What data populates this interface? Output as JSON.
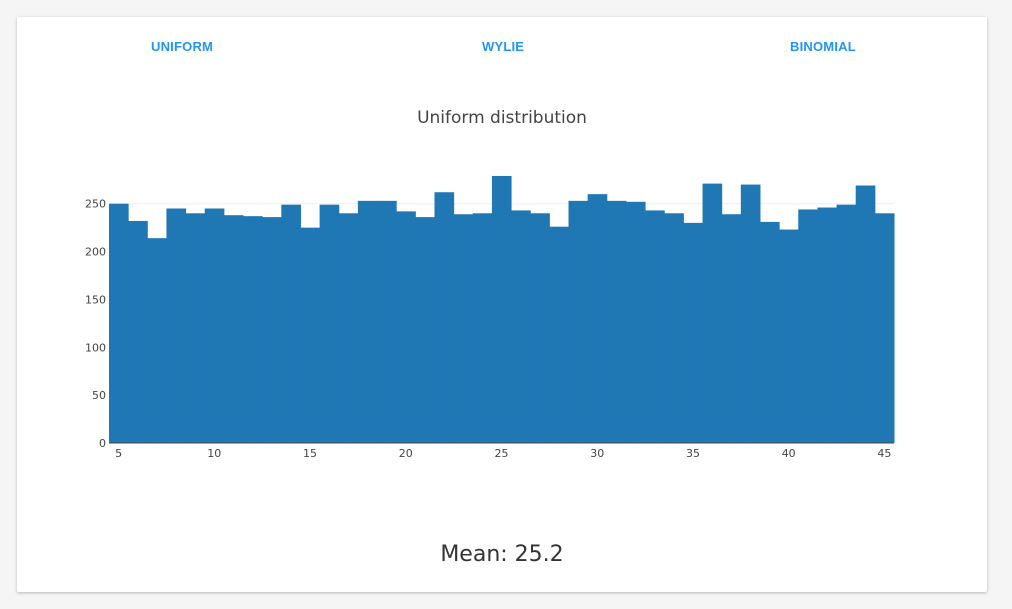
{
  "tabs": [
    {
      "label": "UNIFORM"
    },
    {
      "label": "WYLIE"
    },
    {
      "label": "BINOMIAL"
    }
  ],
  "mean_text": "Mean: 25.2",
  "colors": {
    "bar": "#1f77b4",
    "accent": "#2196f3"
  },
  "chart_data": {
    "type": "bar",
    "title": "Uniform distribution",
    "xlabel": "",
    "ylabel": "",
    "xlim": [
      4.5,
      45.5
    ],
    "ylim": [
      0,
      280
    ],
    "xticks": [
      5,
      10,
      15,
      20,
      25,
      30,
      35,
      40,
      45
    ],
    "yticks": [
      0,
      50,
      100,
      150,
      200,
      250
    ],
    "grid": true,
    "x": [
      5,
      6,
      7,
      8,
      9,
      10,
      11,
      12,
      13,
      14,
      15,
      16,
      17,
      18,
      19,
      20,
      21,
      22,
      23,
      24,
      25,
      26,
      27,
      28,
      29,
      30,
      31,
      32,
      33,
      34,
      35,
      36,
      37,
      38,
      39,
      40,
      41,
      42,
      43,
      44,
      45
    ],
    "values": [
      250,
      232,
      214,
      245,
      240,
      245,
      238,
      237,
      236,
      249,
      225,
      249,
      240,
      253,
      253,
      242,
      236,
      262,
      239,
      240,
      279,
      243,
      240,
      226,
      253,
      260,
      253,
      252,
      243,
      240,
      230,
      271,
      239,
      270,
      231,
      223,
      244,
      246,
      249,
      269,
      240
    ]
  }
}
